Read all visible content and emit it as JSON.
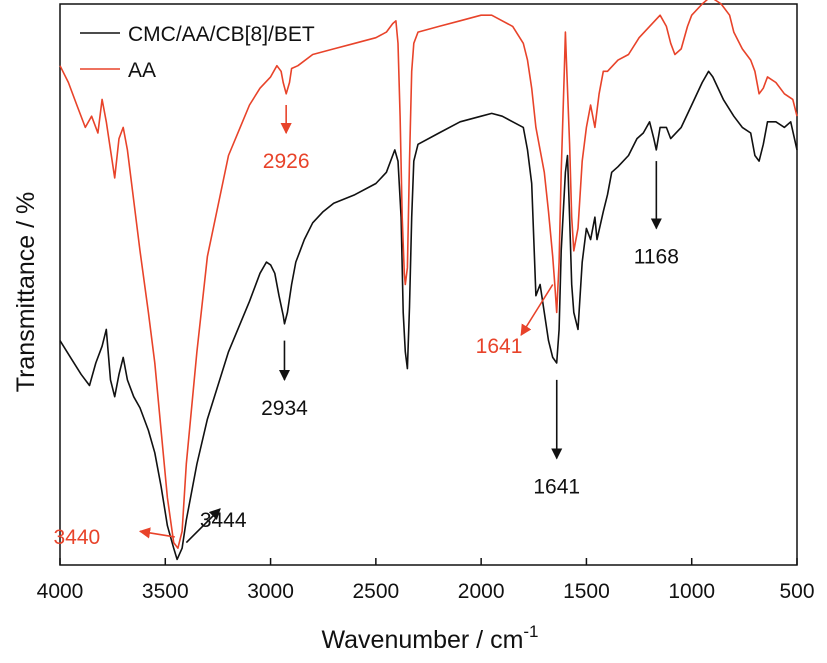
{
  "chart_data": {
    "type": "line",
    "title": "",
    "xlabel": "Wavenumber / cm",
    "xlabel_superscript": "-1",
    "ylabel": "Transmittance / %",
    "xlim": [
      4000,
      500
    ],
    "ylim": [
      0,
      100
    ],
    "x_reversed": true,
    "y_ticks_shown": false,
    "grid": false,
    "legend_position": "top-left",
    "x_ticks": [
      {
        "value": 4000,
        "label": "4000"
      },
      {
        "value": 3500,
        "label": "3500"
      },
      {
        "value": 3000,
        "label": "3000"
      },
      {
        "value": 2500,
        "label": "2500"
      },
      {
        "value": 2000,
        "label": "2000"
      },
      {
        "value": 1500,
        "label": "1500"
      },
      {
        "value": 1000,
        "label": "1000"
      },
      {
        "value": 500,
        "label": "500"
      }
    ],
    "series": [
      {
        "name": "CMC/AA/CB[8]/BET",
        "color": "#111111",
        "points": [
          [
            4000,
            40
          ],
          [
            3950,
            37
          ],
          [
            3900,
            34
          ],
          [
            3860,
            32
          ],
          [
            3830,
            36
          ],
          [
            3800,
            39
          ],
          [
            3780,
            42
          ],
          [
            3760,
            33
          ],
          [
            3740,
            30
          ],
          [
            3720,
            34
          ],
          [
            3700,
            37
          ],
          [
            3680,
            33
          ],
          [
            3650,
            30
          ],
          [
            3620,
            28
          ],
          [
            3580,
            24
          ],
          [
            3550,
            20
          ],
          [
            3520,
            14
          ],
          [
            3490,
            7
          ],
          [
            3460,
            3
          ],
          [
            3444,
            1
          ],
          [
            3420,
            3
          ],
          [
            3400,
            8
          ],
          [
            3350,
            18
          ],
          [
            3300,
            26
          ],
          [
            3200,
            38
          ],
          [
            3100,
            47
          ],
          [
            3050,
            52
          ],
          [
            3020,
            54
          ],
          [
            3000,
            53.5
          ],
          [
            2980,
            52
          ],
          [
            2960,
            48
          ],
          [
            2940,
            44.5
          ],
          [
            2934,
            43
          ],
          [
            2920,
            45
          ],
          [
            2900,
            50
          ],
          [
            2880,
            54
          ],
          [
            2860,
            56
          ],
          [
            2840,
            58
          ],
          [
            2800,
            61
          ],
          [
            2750,
            63
          ],
          [
            2700,
            64.5
          ],
          [
            2600,
            66
          ],
          [
            2500,
            68
          ],
          [
            2450,
            70
          ],
          [
            2410,
            74
          ],
          [
            2395,
            72
          ],
          [
            2380,
            62
          ],
          [
            2370,
            45
          ],
          [
            2360,
            38
          ],
          [
            2350,
            35
          ],
          [
            2340,
            46
          ],
          [
            2330,
            62
          ],
          [
            2320,
            72
          ],
          [
            2300,
            75
          ],
          [
            2200,
            77
          ],
          [
            2100,
            79
          ],
          [
            2000,
            80
          ],
          [
            1950,
            80.5
          ],
          [
            1900,
            80
          ],
          [
            1850,
            79
          ],
          [
            1800,
            78
          ],
          [
            1780,
            74
          ],
          [
            1760,
            68
          ],
          [
            1750,
            58
          ],
          [
            1740,
            48
          ],
          [
            1720,
            50
          ],
          [
            1700,
            45
          ],
          [
            1680,
            40
          ],
          [
            1660,
            37
          ],
          [
            1641,
            36
          ],
          [
            1630,
            42
          ],
          [
            1620,
            56
          ],
          [
            1600,
            70
          ],
          [
            1590,
            73
          ],
          [
            1580,
            62
          ],
          [
            1570,
            50
          ],
          [
            1560,
            45
          ],
          [
            1540,
            42
          ],
          [
            1520,
            54
          ],
          [
            1500,
            60
          ],
          [
            1480,
            58
          ],
          [
            1460,
            62
          ],
          [
            1450,
            58
          ],
          [
            1420,
            63
          ],
          [
            1400,
            66
          ],
          [
            1380,
            70
          ],
          [
            1350,
            71
          ],
          [
            1300,
            73
          ],
          [
            1260,
            76
          ],
          [
            1230,
            77
          ],
          [
            1200,
            79
          ],
          [
            1180,
            76
          ],
          [
            1168,
            74
          ],
          [
            1150,
            78
          ],
          [
            1120,
            78
          ],
          [
            1100,
            76
          ],
          [
            1050,
            78
          ],
          [
            1000,
            82
          ],
          [
            950,
            86
          ],
          [
            920,
            88
          ],
          [
            900,
            87
          ],
          [
            850,
            83
          ],
          [
            800,
            80
          ],
          [
            760,
            78
          ],
          [
            720,
            77
          ],
          [
            700,
            73
          ],
          [
            680,
            72
          ],
          [
            660,
            75
          ],
          [
            640,
            79
          ],
          [
            600,
            79
          ],
          [
            560,
            78
          ],
          [
            530,
            79
          ],
          [
            500,
            74
          ]
        ]
      },
      {
        "name": "AA",
        "color": "#e8432a",
        "points": [
          [
            4000,
            89
          ],
          [
            3960,
            86
          ],
          [
            3920,
            82
          ],
          [
            3880,
            78
          ],
          [
            3850,
            80
          ],
          [
            3820,
            77
          ],
          [
            3800,
            83
          ],
          [
            3780,
            79
          ],
          [
            3760,
            74
          ],
          [
            3740,
            69
          ],
          [
            3720,
            76
          ],
          [
            3700,
            78
          ],
          [
            3680,
            74
          ],
          [
            3650,
            65
          ],
          [
            3620,
            56
          ],
          [
            3580,
            45
          ],
          [
            3550,
            36
          ],
          [
            3520,
            24
          ],
          [
            3490,
            12
          ],
          [
            3460,
            4
          ],
          [
            3440,
            3
          ],
          [
            3420,
            6
          ],
          [
            3400,
            18
          ],
          [
            3350,
            38
          ],
          [
            3300,
            55
          ],
          [
            3200,
            73
          ],
          [
            3100,
            82
          ],
          [
            3050,
            85
          ],
          [
            3000,
            87
          ],
          [
            2970,
            89
          ],
          [
            2950,
            88
          ],
          [
            2940,
            86
          ],
          [
            2926,
            84
          ],
          [
            2910,
            86
          ],
          [
            2900,
            88.5
          ],
          [
            2870,
            89
          ],
          [
            2800,
            91
          ],
          [
            2700,
            92
          ],
          [
            2600,
            93
          ],
          [
            2500,
            94
          ],
          [
            2450,
            95
          ],
          [
            2420,
            96.5
          ],
          [
            2405,
            97
          ],
          [
            2395,
            93
          ],
          [
            2385,
            80
          ],
          [
            2375,
            62
          ],
          [
            2365,
            52
          ],
          [
            2360,
            50
          ],
          [
            2350,
            53
          ],
          [
            2340,
            72
          ],
          [
            2330,
            88
          ],
          [
            2320,
            93
          ],
          [
            2300,
            95
          ],
          [
            2200,
            96
          ],
          [
            2100,
            97
          ],
          [
            2000,
            98
          ],
          [
            1950,
            98
          ],
          [
            1900,
            97
          ],
          [
            1850,
            96
          ],
          [
            1800,
            93
          ],
          [
            1780,
            90
          ],
          [
            1760,
            85
          ],
          [
            1740,
            78
          ],
          [
            1720,
            74
          ],
          [
            1700,
            70
          ],
          [
            1680,
            63
          ],
          [
            1660,
            55
          ],
          [
            1650,
            50
          ],
          [
            1641,
            45
          ],
          [
            1630,
            54
          ],
          [
            1620,
            70
          ],
          [
            1605,
            88
          ],
          [
            1600,
            95
          ],
          [
            1595,
            90
          ],
          [
            1580,
            75
          ],
          [
            1570,
            62
          ],
          [
            1560,
            56
          ],
          [
            1540,
            60
          ],
          [
            1520,
            72
          ],
          [
            1500,
            78
          ],
          [
            1480,
            82
          ],
          [
            1460,
            78
          ],
          [
            1440,
            84
          ],
          [
            1420,
            88
          ],
          [
            1400,
            88
          ],
          [
            1350,
            90
          ],
          [
            1300,
            91
          ],
          [
            1250,
            94
          ],
          [
            1200,
            96
          ],
          [
            1150,
            98
          ],
          [
            1120,
            96
          ],
          [
            1100,
            93
          ],
          [
            1080,
            91
          ],
          [
            1050,
            92
          ],
          [
            1020,
            96
          ],
          [
            1000,
            98
          ],
          [
            950,
            100
          ],
          [
            920,
            101
          ],
          [
            900,
            101
          ],
          [
            860,
            100
          ],
          [
            820,
            98
          ],
          [
            800,
            95
          ],
          [
            760,
            92
          ],
          [
            720,
            90
          ],
          [
            700,
            88
          ],
          [
            680,
            84
          ],
          [
            660,
            85
          ],
          [
            640,
            87
          ],
          [
            600,
            86
          ],
          [
            560,
            84
          ],
          [
            520,
            83
          ],
          [
            500,
            80
          ]
        ]
      }
    ],
    "annotations": [
      {
        "label": "3444",
        "color": "#111111",
        "from": [
          3400,
          4
        ],
        "to": [
          3240,
          10
        ],
        "text_at": [
          3225,
          8
        ]
      },
      {
        "label": "3440",
        "color": "#e8432a",
        "from": [
          3455,
          5
        ],
        "to": [
          3620,
          6
        ],
        "text_at": [
          3920,
          5
        ]
      },
      {
        "label": "2934",
        "color": "#111111",
        "from": [
          2934,
          40
        ],
        "to": [
          2934,
          33
        ],
        "text_at": [
          2934,
          28
        ]
      },
      {
        "label": "2926",
        "color": "#e8432a",
        "from": [
          2926,
          82
        ],
        "to": [
          2926,
          77
        ],
        "text_at": [
          2926,
          72
        ]
      },
      {
        "label": "1641",
        "color": "#111111",
        "from": [
          1641,
          33
        ],
        "to": [
          1641,
          19
        ],
        "text_at": [
          1641,
          14
        ]
      },
      {
        "label": "1641",
        "color": "#e8432a",
        "from": [
          1660,
          50
        ],
        "to": [
          1810,
          41
        ],
        "text_at": [
          1915,
          39
        ]
      },
      {
        "label": "1168",
        "color": "#111111",
        "from": [
          1168,
          72
        ],
        "to": [
          1168,
          60
        ],
        "text_at": [
          1168,
          55
        ]
      }
    ]
  }
}
